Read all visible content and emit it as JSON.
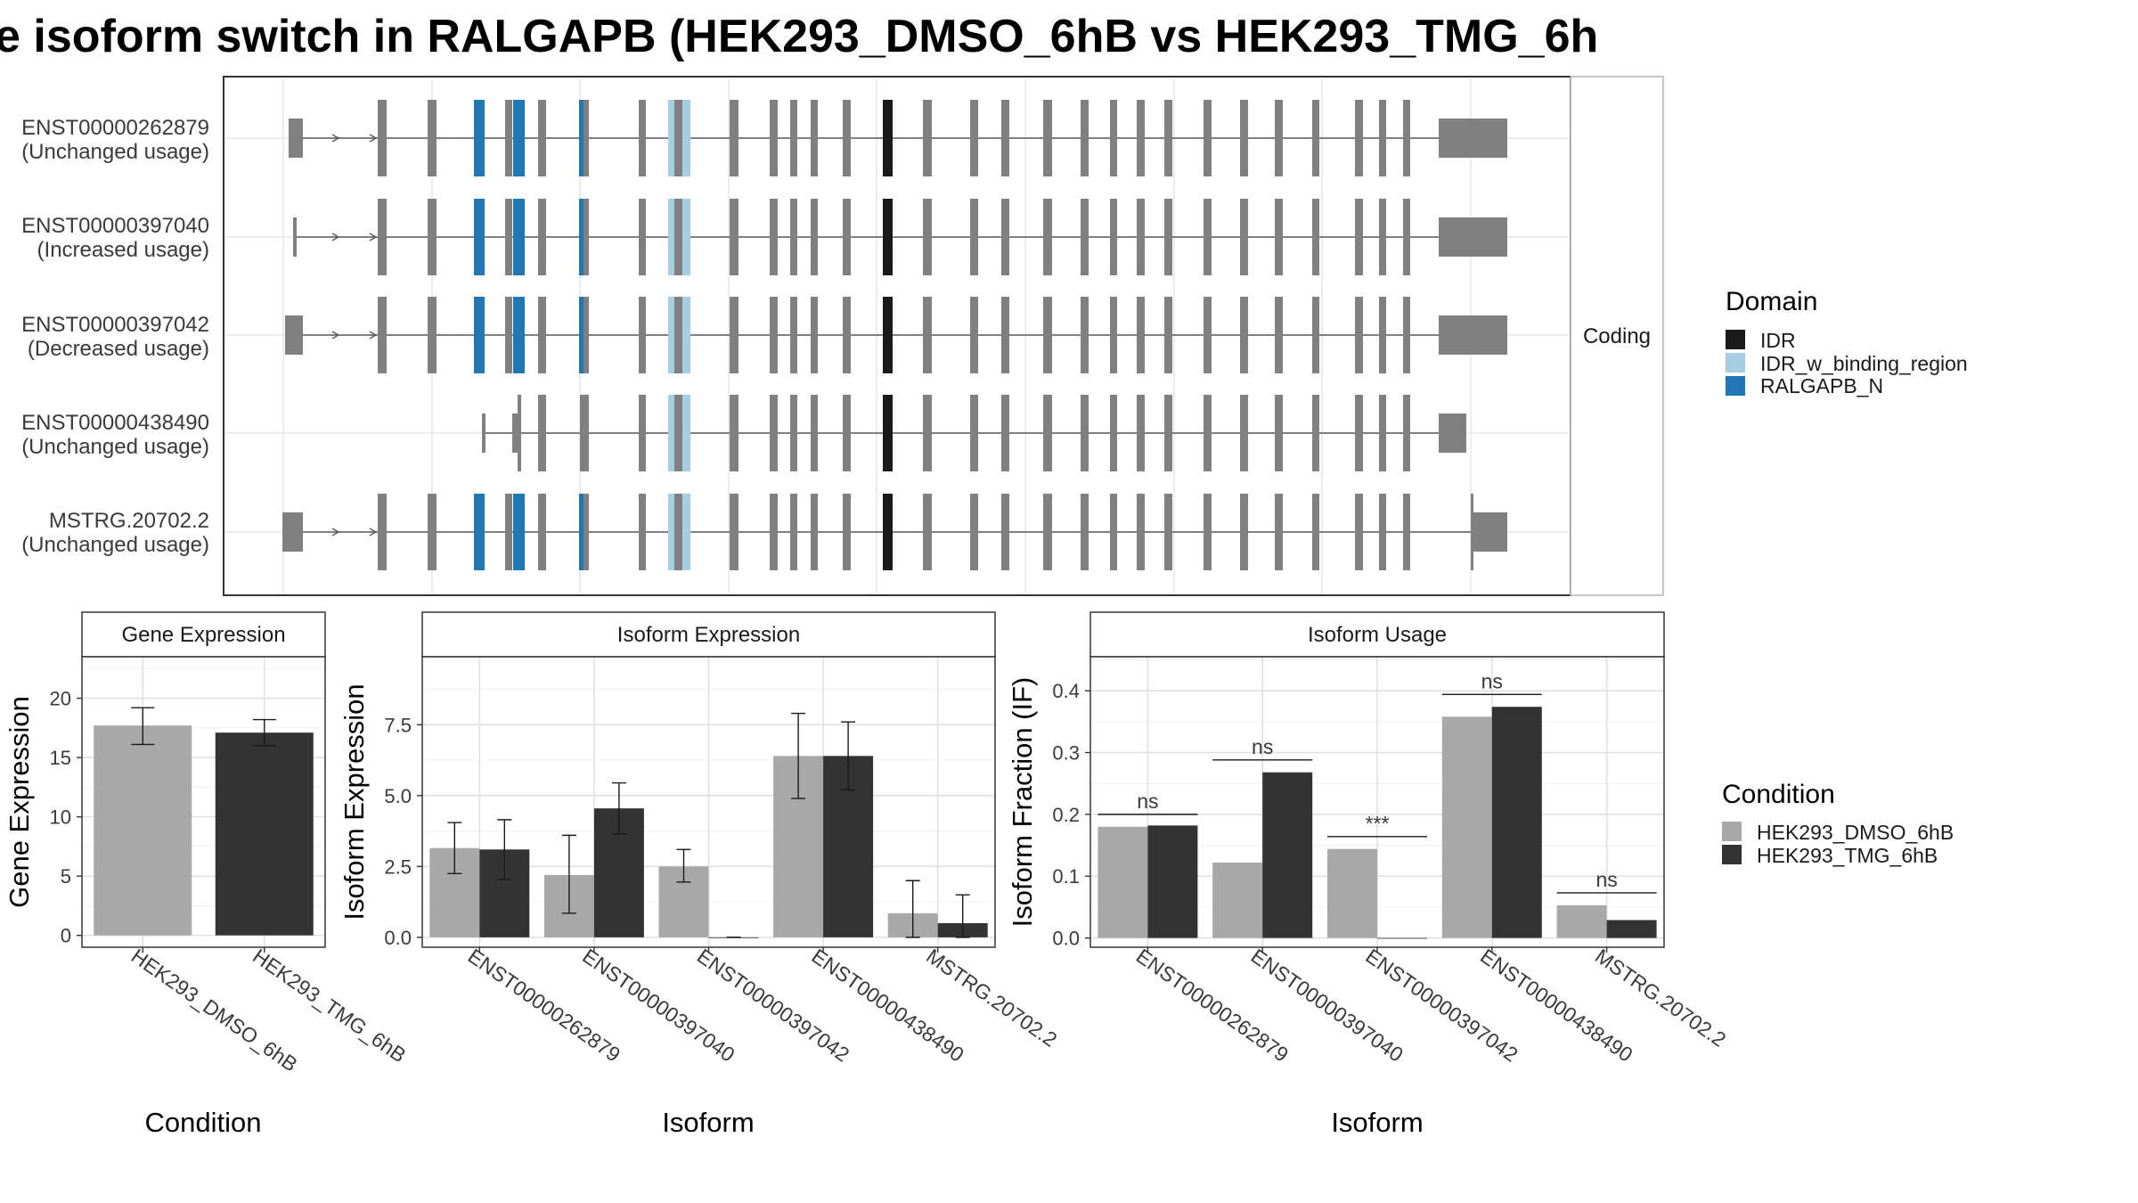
{
  "title": "e isoform switch in RALGAPB (HEK293_DMSO_6hB vs HEK293_TMG_6h",
  "transcript_panel": {
    "strip_label": "Coding",
    "isoforms": [
      {
        "id": "ENST00000262879",
        "usage": "(Unchanged usage)"
      },
      {
        "id": "ENST00000397040",
        "usage": "(Increased usage)"
      },
      {
        "id": "ENST00000397042",
        "usage": "(Decreased usage)"
      },
      {
        "id": "ENST00000438490",
        "usage": "(Unchanged usage)"
      },
      {
        "id": "MSTRG.20702.2",
        "usage": "(Unchanged usage)"
      }
    ]
  },
  "legends": {
    "domain": {
      "title": "Domain",
      "items": [
        {
          "label": "IDR",
          "color": "#1a1a1a"
        },
        {
          "label": "IDR_w_binding_region",
          "color": "#a6cee3"
        },
        {
          "label": "RALGAPB_N",
          "color": "#1f78b4"
        }
      ]
    },
    "condition": {
      "title": "Condition",
      "items": [
        {
          "label": "HEK293_DMSO_6hB",
          "color": "#a8a8a8"
        },
        {
          "label": "HEK293_TMG_6hB",
          "color": "#333333"
        }
      ]
    }
  },
  "colors": {
    "exon": "#808080",
    "intron": "#5a5a5a",
    "grid": "#e6e6e6"
  },
  "chart_data": [
    {
      "type": "bar",
      "panel": "Gene Expression",
      "xlabel": "Condition",
      "ylabel": "Gene Expression",
      "categories": [
        "HEK293_DMSO_6hB",
        "HEK293_TMG_6hB"
      ],
      "series": [
        {
          "name": "HEK293_DMSO_6hB",
          "values": [
            17.7,
            null
          ],
          "error_low": [
            16.1,
            null
          ],
          "error_high": [
            19.2,
            null
          ]
        },
        {
          "name": "HEK293_TMG_6hB",
          "values": [
            null,
            17.1
          ],
          "error_low": [
            null,
            16.0
          ],
          "error_high": [
            null,
            18.2
          ]
        }
      ],
      "yticks": [
        0,
        5,
        10,
        15,
        20
      ],
      "ylim": [
        -1,
        23.5
      ]
    },
    {
      "type": "bar",
      "panel": "Isoform Expression",
      "xlabel": "Isoform",
      "ylabel": "Isoform Expression",
      "categories": [
        "ENST00000262879",
        "ENST00000397040",
        "ENST00000397042",
        "ENST00000438490",
        "MSTRG.20702.2"
      ],
      "series": [
        {
          "name": "HEK293_DMSO_6hB",
          "values": [
            3.15,
            2.2,
            2.5,
            6.4,
            0.85
          ],
          "error_low": [
            2.25,
            0.85,
            1.95,
            4.9,
            0.0
          ],
          "error_high": [
            4.05,
            3.6,
            3.1,
            7.9,
            2.0
          ]
        },
        {
          "name": "HEK293_TMG_6hB",
          "values": [
            3.1,
            4.55,
            0.0,
            6.4,
            0.5
          ],
          "error_low": [
            2.05,
            3.65,
            0.0,
            5.2,
            0.0
          ],
          "error_high": [
            4.15,
            5.45,
            0.0,
            7.6,
            1.5
          ]
        }
      ],
      "yticks": [
        0.0,
        2.5,
        5.0,
        7.5
      ],
      "ylim": [
        -0.35,
        9.9
      ]
    },
    {
      "type": "bar",
      "panel": "Isoform Usage",
      "xlabel": "Isoform",
      "ylabel": "Isoform Fraction (IF)",
      "categories": [
        "ENST00000262879",
        "ENST00000397040",
        "ENST00000397042",
        "ENST00000438490",
        "MSTRG.20702.2"
      ],
      "series": [
        {
          "name": "HEK293_DMSO_6hB",
          "values": [
            0.18,
            0.122,
            0.144,
            0.358,
            0.053
          ]
        },
        {
          "name": "HEK293_TMG_6hB",
          "values": [
            0.182,
            0.268,
            0.0,
            0.374,
            0.029
          ]
        }
      ],
      "significance": [
        "ns",
        "ns",
        "***",
        "ns",
        "ns"
      ],
      "sig_level": [
        0.2,
        0.288,
        0.164,
        0.394,
        0.073
      ],
      "yticks": [
        0.0,
        0.1,
        0.2,
        0.3,
        0.4
      ],
      "ylim": [
        -0.015,
        0.455
      ]
    }
  ]
}
